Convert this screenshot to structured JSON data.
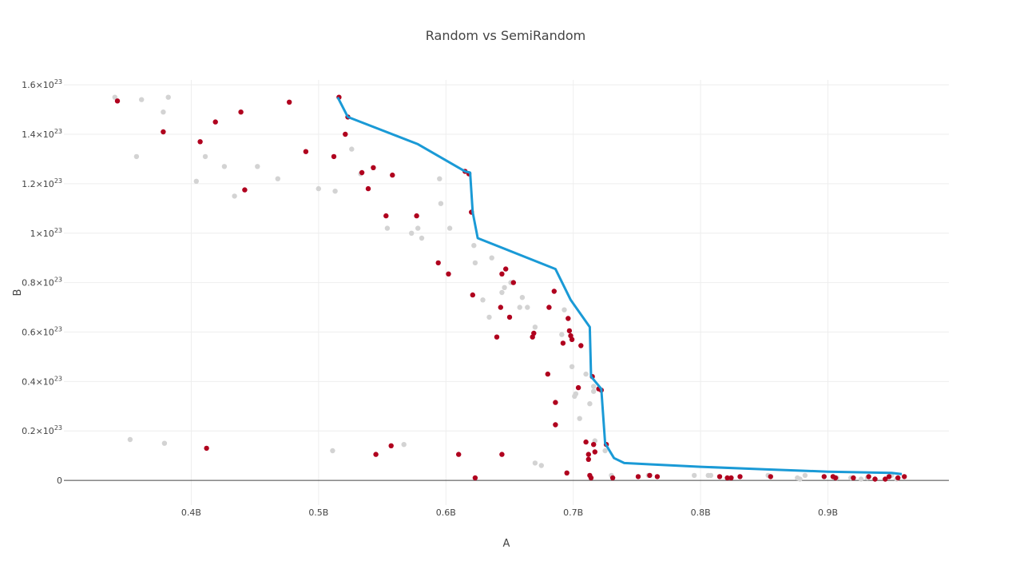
{
  "chart_data": {
    "type": "scatter",
    "title": "Random vs SemiRandom",
    "xlabel": "A",
    "ylabel": "B",
    "xlim": [
      0.3,
      0.995
    ],
    "ylim": [
      -1e+22,
      1.62e+23
    ],
    "grid": true,
    "legend": "none",
    "x_ticks": [
      {
        "value": 0.4,
        "label": "0.4B"
      },
      {
        "value": 0.5,
        "label": "0.5B"
      },
      {
        "value": 0.6,
        "label": "0.6B"
      },
      {
        "value": 0.7,
        "label": "0.7B"
      },
      {
        "value": 0.8,
        "label": "0.8B"
      },
      {
        "value": 0.9,
        "label": "0.9B"
      }
    ],
    "y_ticks": [
      {
        "value": 0,
        "base": "0",
        "exp": ""
      },
      {
        "value": 2e+22,
        "base": "0.2×10",
        "exp": "23"
      },
      {
        "value": 4e+22,
        "base": "0.4×10",
        "exp": "23"
      },
      {
        "value": 6e+22,
        "base": "0.6×10",
        "exp": "23"
      },
      {
        "value": 8e+22,
        "base": "0.8×10",
        "exp": "23"
      },
      {
        "value": 1e+23,
        "base": "1×10",
        "exp": "23"
      },
      {
        "value": 1.2e+23,
        "base": "1.2×10",
        "exp": "23"
      },
      {
        "value": 1.4e+23,
        "base": "1.4×10",
        "exp": "23"
      },
      {
        "value": 1.6e+23,
        "base": "1.6×10",
        "exp": "23"
      }
    ],
    "series": [
      {
        "color": "#d3d3d3",
        "mode": "markers",
        "x": [
          0.34,
          0.357,
          0.361,
          0.378,
          0.378,
          0.382,
          0.404,
          0.411,
          0.426,
          0.434,
          0.452,
          0.468,
          0.5,
          0.513,
          0.526,
          0.533,
          0.554,
          0.573,
          0.578,
          0.581,
          0.595,
          0.596,
          0.603,
          0.622,
          0.623,
          0.629,
          0.634,
          0.636,
          0.644,
          0.646,
          0.651,
          0.658,
          0.66,
          0.664,
          0.67,
          0.691,
          0.693,
          0.699,
          0.701,
          0.702,
          0.705,
          0.71,
          0.713,
          0.716,
          0.716,
          0.717,
          0.725,
          0.73,
          0.352,
          0.379,
          0.511,
          0.567,
          0.67,
          0.675,
          0.759,
          0.795,
          0.806,
          0.808,
          0.853,
          0.876,
          0.878,
          0.882,
          0.907,
          0.918,
          0.926,
          0.931,
          0.95,
          0.954
        ],
        "y": [
          1.55e+23,
          1.31e+23,
          1.54e+23,
          1.49e+23,
          1.41e+23,
          1.55e+23,
          1.21e+23,
          1.31e+23,
          1.27e+23,
          1.15e+23,
          1.27e+23,
          1.22e+23,
          1.18e+23,
          1.17e+23,
          1.34e+23,
          1.24e+23,
          1.02e+23,
          1e+23,
          1.02e+23,
          9.8e+22,
          1.22e+23,
          1.12e+23,
          1.02e+23,
          9.5e+22,
          8.8e+22,
          7.3e+22,
          6.6e+22,
          9e+22,
          7.6e+22,
          7.8e+22,
          8e+22,
          7e+22,
          7.4e+22,
          7e+22,
          6.2e+22,
          5.9e+22,
          6.9e+22,
          4.6e+22,
          3.4e+22,
          3.5e+22,
          2.5e+22,
          4.3e+22,
          3.1e+22,
          3.6e+22,
          3.8e+22,
          1.6e+22,
          1.2e+22,
          2e+21,
          1.65e+22,
          1.5e+22,
          1.2e+22,
          1.45e+22,
          7e+21,
          6e+21,
          2e+21,
          2e+21,
          2e+21,
          2e+21,
          2e+21,
          1e+21,
          5e+20,
          2e+21,
          1e+21,
          1e+21,
          5e+20,
          1e+21,
          2e+21,
          5e+20
        ]
      },
      {
        "color": "#b0001e",
        "mode": "markers",
        "x": [
          0.342,
          0.378,
          0.407,
          0.419,
          0.439,
          0.442,
          0.477,
          0.49,
          0.512,
          0.516,
          0.521,
          0.523,
          0.534,
          0.539,
          0.543,
          0.553,
          0.558,
          0.577,
          0.594,
          0.602,
          0.615,
          0.618,
          0.62,
          0.621,
          0.64,
          0.643,
          0.644,
          0.647,
          0.65,
          0.653,
          0.668,
          0.669,
          0.68,
          0.681,
          0.685,
          0.686,
          0.686,
          0.692,
          0.696,
          0.697,
          0.698,
          0.699,
          0.704,
          0.706,
          0.71,
          0.712,
          0.712,
          0.715,
          0.716,
          0.717,
          0.72,
          0.722,
          0.726,
          0.412,
          0.545,
          0.557,
          0.61,
          0.623,
          0.644,
          0.695,
          0.713,
          0.714,
          0.731,
          0.751,
          0.76,
          0.766,
          0.815,
          0.821,
          0.824,
          0.831,
          0.855,
          0.897,
          0.904,
          0.906,
          0.92,
          0.932,
          0.937,
          0.945,
          0.948,
          0.955,
          0.96
        ],
        "y": [
          1.535e+23,
          1.41e+23,
          1.37e+23,
          1.45e+23,
          1.49e+23,
          1.175e+23,
          1.53e+23,
          1.33e+23,
          1.31e+23,
          1.55e+23,
          1.4e+23,
          1.47e+23,
          1.245e+23,
          1.18e+23,
          1.265e+23,
          1.07e+23,
          1.235e+23,
          1.07e+23,
          8.8e+22,
          8.35e+22,
          1.25e+23,
          1.24e+23,
          1.085e+23,
          7.5e+22,
          5.8e+22,
          7e+22,
          8.35e+22,
          8.55e+22,
          6.6e+22,
          8e+22,
          5.8e+22,
          5.95e+22,
          4.3e+22,
          7e+22,
          7.65e+22,
          3.15e+22,
          2.25e+22,
          5.55e+22,
          6.55e+22,
          6.05e+22,
          5.85e+22,
          5.7e+22,
          3.75e+22,
          5.45e+22,
          1.55e+22,
          1.05e+22,
          8.5e+21,
          4.2e+22,
          1.45e+22,
          1.15e+22,
          3.7e+22,
          3.65e+22,
          1.45e+22,
          1.3e+22,
          1.05e+22,
          1.4e+22,
          1.05e+22,
          1e+21,
          1.05e+22,
          3e+21,
          2e+21,
          1e+21,
          1e+21,
          1.5e+21,
          2e+21,
          1.5e+21,
          1.5e+21,
          1e+21,
          1e+21,
          1.5e+21,
          1.5e+21,
          1.5e+21,
          1.5e+21,
          1e+21,
          1e+21,
          1.5e+21,
          5e+20,
          5e+20,
          1.5e+21,
          1e+21,
          1.5e+21
        ]
      },
      {
        "color": "#1a9ad6",
        "mode": "lines",
        "x": [
          0.515,
          0.523,
          0.578,
          0.615,
          0.619,
          0.621,
          0.625,
          0.686,
          0.698,
          0.713,
          0.714,
          0.722,
          0.725,
          0.732,
          0.74,
          0.76,
          0.8,
          0.85,
          0.9,
          0.95,
          0.958
        ],
        "y": [
          1.55e+23,
          1.47e+23,
          1.36e+23,
          1.25e+23,
          1.245e+23,
          1.085e+23,
          9.8e+22,
          8.55e+22,
          7.3e+22,
          6.2e+22,
          4.2e+22,
          3.7e+22,
          1.5e+22,
          9e+21,
          7e+21,
          6.5e+21,
          5.5e+21,
          4.5e+21,
          3.5e+21,
          3e+21,
          2.5e+21
        ]
      }
    ]
  }
}
